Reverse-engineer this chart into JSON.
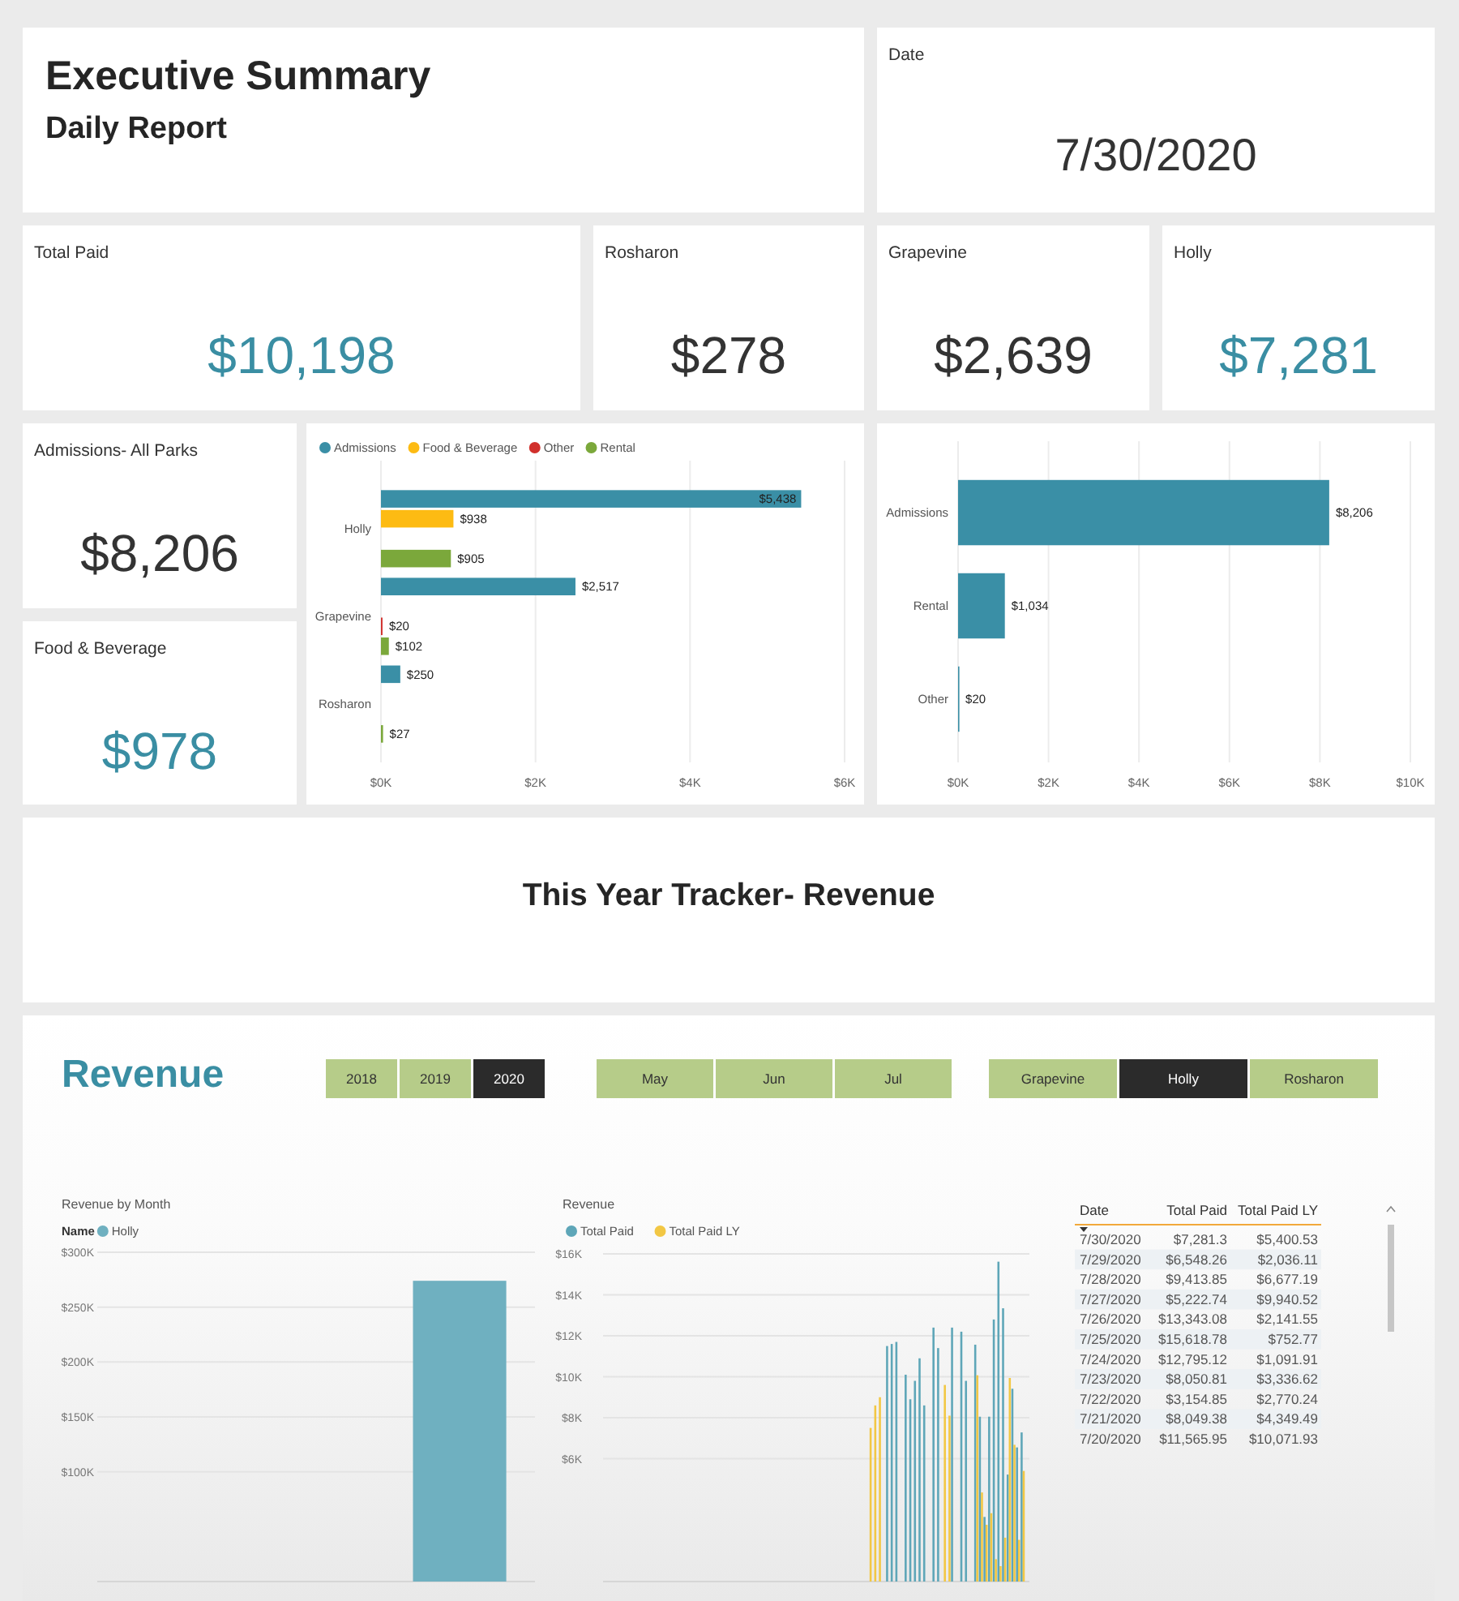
{
  "chart_data": [
    {
      "type": "other",
      "title": "Executive Summary",
      "subtitle": "Daily Report"
    },
    {
      "type": "other",
      "title": "Date",
      "annotations": [
        "7/30/2020"
      ],
      "color": "#333333"
    },
    {
      "type": "other",
      "title": "Total Paid",
      "annotations": [
        "$10,198"
      ],
      "color": "#3a8ea3"
    },
    {
      "type": "other",
      "title": "Rosharon",
      "annotations": [
        "$278"
      ],
      "color": "#333333"
    },
    {
      "type": "other",
      "title": "Grapevine",
      "annotations": [
        "$2,639"
      ],
      "color": "#333333"
    },
    {
      "type": "other",
      "title": "Holly",
      "annotations": [
        "$7,281"
      ],
      "color": "#3a8ea3"
    },
    {
      "type": "other",
      "title": "Admissions- All Parks",
      "annotations": [
        "$8,206"
      ],
      "color": "#333333"
    },
    {
      "type": "other",
      "title": "Food & Beverage",
      "annotations": [
        "$978"
      ],
      "color": "#3a8ea3"
    },
    {
      "type": "bar",
      "orientation": "horizontal",
      "categories": [
        "Holly",
        "Grapevine",
        "Rosharon"
      ],
      "series": [
        {
          "name": "Admissions",
          "color": "#3a8fa6",
          "values": [
            5438,
            2517,
            250
          ],
          "value_labels": [
            "$5,438",
            "$2,517",
            "$250"
          ]
        },
        {
          "name": "Food & Beverage",
          "color": "#fdbb13",
          "values": [
            938,
            null,
            null
          ],
          "value_labels": [
            "$938",
            null,
            null
          ]
        },
        {
          "name": "Other",
          "color": "#d1302c",
          "values": [
            null,
            20,
            null
          ],
          "value_labels": [
            null,
            "$20",
            null
          ]
        },
        {
          "name": "Rental",
          "color": "#7ba83b",
          "values": [
            905,
            102,
            27
          ],
          "value_labels": [
            "$905",
            "$102",
            "$27"
          ]
        }
      ],
      "xlim": [
        0,
        6000
      ],
      "xticks": [
        {
          "value": 0,
          "label": "$0K"
        },
        {
          "value": 2000,
          "label": "$2K"
        },
        {
          "value": 4000,
          "label": "$4K"
        },
        {
          "value": 6000,
          "label": "$6K"
        }
      ],
      "grid": "x",
      "legend": "top left"
    },
    {
      "type": "bar",
      "orientation": "horizontal",
      "categories": [
        "Admissions",
        "Rental",
        "Other"
      ],
      "values": [
        8206,
        1034,
        20
      ],
      "value_labels": [
        "$8,206",
        "$1,034",
        "$20"
      ],
      "color": "#3a8fa6",
      "xlim": [
        0,
        10000
      ],
      "xticks": [
        {
          "value": 0,
          "label": "$0K"
        },
        {
          "value": 2000,
          "label": "$2K"
        },
        {
          "value": 4000,
          "label": "$4K"
        },
        {
          "value": 6000,
          "label": "$6K"
        },
        {
          "value": 8000,
          "label": "$8K"
        },
        {
          "value": 10000,
          "label": "$10K"
        }
      ],
      "grid": "x"
    },
    {
      "type": "other",
      "title": "This Year Tracker- Revenue"
    },
    {
      "type": "other",
      "title": "Revenue",
      "color": "#3a8ea3",
      "categories": [
        "2018",
        "2019",
        "2020",
        "May",
        "Jun",
        "Jul",
        "Grapevine",
        "Holly",
        "Rosharon"
      ],
      "colors": [
        "#b6cc89",
        "#b6cc89",
        "#2b2b2b",
        "#b6cc89",
        "#b6cc89",
        "#b6cc89",
        "#b6cc89",
        "#2b2b2b",
        "#b6cc89"
      ]
    },
    {
      "type": "bar",
      "title": "Revenue by Month",
      "legend_title": "Name",
      "legend": "top left",
      "categories": [
        null,
        null,
        null
      ],
      "series": [
        {
          "name": "Holly",
          "color": "#6fb0c0",
          "values": [
            null,
            null,
            274000
          ]
        }
      ],
      "ylim": [
        0,
        300000
      ],
      "yticks": [
        {
          "value": 100000,
          "label": "$100K"
        },
        {
          "value": 150000,
          "label": "$150K"
        },
        {
          "value": 200000,
          "label": "$200K"
        },
        {
          "value": 250000,
          "label": "$250K"
        },
        {
          "value": 300000,
          "label": "$300K"
        }
      ],
      "grid": "y",
      "tick_labels": "y"
    },
    {
      "type": "bar",
      "title": "Revenue",
      "legend": "top left",
      "categories": [
        null,
        null,
        null,
        null,
        null,
        null,
        null,
        null,
        null,
        null,
        null,
        null,
        null,
        null,
        null,
        null,
        null,
        null,
        null,
        null,
        null,
        null,
        null,
        null,
        null,
        null,
        null,
        null,
        null,
        null,
        null,
        null,
        null,
        null,
        null,
        null,
        null,
        null,
        null,
        null,
        null,
        null,
        null,
        null,
        null,
        null,
        null,
        null,
        null,
        null,
        null,
        null,
        null,
        null,
        null,
        null,
        null,
        null,
        null,
        null,
        null,
        null,
        null,
        null,
        null,
        null,
        null,
        null,
        null,
        null,
        null,
        null,
        null,
        null,
        null,
        null,
        null,
        null,
        null,
        null,
        null,
        null,
        null,
        null,
        null,
        null,
        null,
        null,
        null,
        null,
        null,
        null
      ],
      "series": [
        {
          "name": "Total Paid",
          "color": "#5ea6b8",
          "values": [
            null,
            null,
            null,
            null,
            null,
            null,
            null,
            null,
            null,
            null,
            null,
            null,
            null,
            null,
            null,
            null,
            null,
            null,
            null,
            null,
            null,
            null,
            null,
            null,
            null,
            null,
            null,
            null,
            null,
            null,
            null,
            null,
            null,
            null,
            null,
            null,
            null,
            null,
            null,
            null,
            null,
            null,
            null,
            null,
            null,
            null,
            null,
            null,
            null,
            null,
            null,
            null,
            null,
            null,
            null,
            null,
            null,
            null,
            null,
            null,
            null,
            11500,
            11600,
            11700,
            null,
            10100,
            8900,
            9800,
            10900,
            8600,
            null,
            12400,
            11400,
            null,
            null,
            12400,
            null,
            12200,
            9800,
            null,
            11565.95,
            8049.38,
            3154.85,
            8050.81,
            12795.12,
            15618.78,
            13343.08,
            5222.74,
            9413.85,
            6548.26,
            7281.3,
            null
          ]
        },
        {
          "name": "Total Paid LY",
          "color": "#f2c744",
          "values": [
            null,
            null,
            null,
            null,
            null,
            null,
            null,
            null,
            null,
            null,
            null,
            null,
            null,
            null,
            null,
            null,
            null,
            null,
            null,
            null,
            null,
            null,
            null,
            null,
            null,
            null,
            null,
            null,
            null,
            null,
            null,
            null,
            null,
            null,
            null,
            null,
            null,
            null,
            null,
            null,
            null,
            null,
            null,
            null,
            null,
            null,
            null,
            null,
            null,
            null,
            null,
            null,
            null,
            null,
            null,
            null,
            null,
            7500,
            8600,
            9000,
            null,
            null,
            null,
            null,
            null,
            null,
            null,
            null,
            null,
            null,
            null,
            null,
            null,
            9600,
            8100,
            null,
            null,
            null,
            null,
            null,
            10071.93,
            4349.49,
            2770.24,
            3336.62,
            1091.91,
            752.77,
            2141.55,
            9940.52,
            6677.19,
            2036.11,
            5400.53,
            null
          ]
        }
      ],
      "ylim": [
        0,
        16000
      ],
      "yticks": [
        {
          "value": 6000,
          "label": "$6K"
        },
        {
          "value": 8000,
          "label": "$8K"
        },
        {
          "value": 10000,
          "label": "$10K"
        },
        {
          "value": 12000,
          "label": "$12K"
        },
        {
          "value": 14000,
          "label": "$14K"
        },
        {
          "value": 16000,
          "label": "$16K"
        }
      ],
      "grid": "y",
      "tick_labels": "y"
    },
    {
      "type": "other",
      "annotations": [
        "Date",
        "Total Paid",
        "Total Paid LY",
        "7/30/2020",
        "$7,281.3",
        "$5,400.53",
        "7/29/2020",
        "$6,548.26",
        "$2,036.11",
        "7/28/2020",
        "$9,413.85",
        "$6,677.19",
        "7/27/2020",
        "$5,222.74",
        "$9,940.52",
        "7/26/2020",
        "$13,343.08",
        "$2,141.55",
        "7/25/2020",
        "$15,618.78",
        "$752.77",
        "7/24/2020",
        "$12,795.12",
        "$1,091.91",
        "7/23/2020",
        "$8,050.81",
        "$3,336.62",
        "7/22/2020",
        "$3,154.85",
        "$2,770.24",
        "7/21/2020",
        "$8,049.38",
        "$4,349.49",
        "7/20/2020",
        "$11,565.95",
        "$10,071.93"
      ]
    }
  ]
}
